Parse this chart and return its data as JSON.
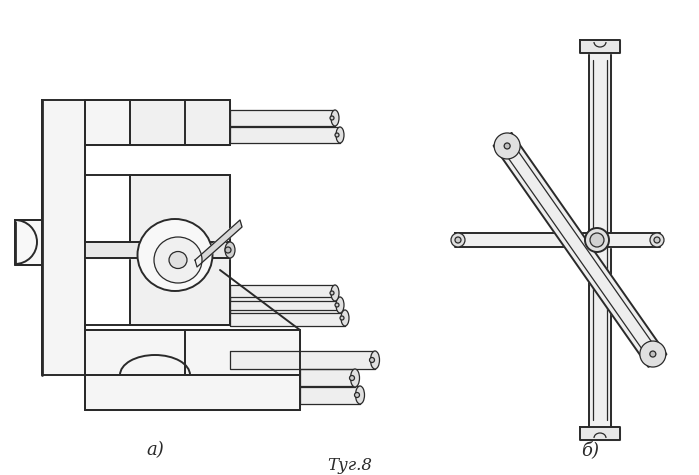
{
  "bg_color": "#ffffff",
  "line_color": "#2a2a2a",
  "label_a": "a)",
  "label_b": "б)",
  "caption": "Τуг.8",
  "fig_width": 6.99,
  "fig_height": 4.75,
  "dpi": 100,
  "lw_main": 1.4,
  "lw_thin": 0.9,
  "lw_thick": 2.0
}
